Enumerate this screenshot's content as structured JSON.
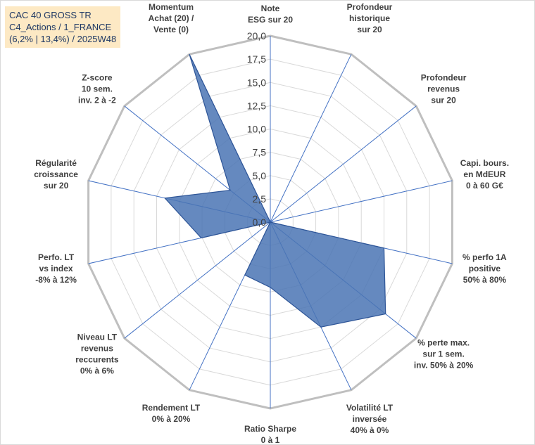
{
  "title_box": {
    "line1": "CAC 40 GROSS TR",
    "line2": "C4_Actions / 1_FRANCE",
    "line3": "(6,2% | 13,4%) / 2025W48"
  },
  "colors": {
    "fill": "#4a74b4",
    "stroke": "#2e5597",
    "grid": "#d9d9d9",
    "outer": "#bfbfbf",
    "spoke": "#4472c4",
    "title_bg": "#fde9c4"
  },
  "chart_data": {
    "type": "radar",
    "ylim": [
      0,
      20
    ],
    "tick_labels": [
      "0,0",
      "2,5",
      "5,0",
      "7,5",
      "10,0",
      "12,5",
      "15,0",
      "17,5",
      "20,0"
    ],
    "categories": [
      [
        "Note",
        "ESG sur 20"
      ],
      [
        "Profondeur",
        "historique",
        "sur 20"
      ],
      [
        "Profondeur",
        "revenus",
        "sur 20"
      ],
      [
        "Capi. bours.",
        "en MdEUR",
        "0 à 60 G€"
      ],
      [
        "% perfo 1A",
        "positive",
        "50% à 80%"
      ],
      [
        "% perte max.",
        "sur 1 sem.",
        "inv. 50% à 20%"
      ],
      [
        "Volatilité LT",
        "inversée",
        "40% à 0%"
      ],
      [
        "Ratio Sharpe",
        "0 à 1"
      ],
      [
        "Rendement LT",
        "0% à 20%"
      ],
      [
        "Niveau LT",
        "revenus",
        "reccurents",
        "0% à 6%"
      ],
      [
        "Perfo. LT",
        "vs index",
        "-8% à 12%"
      ],
      [
        "Régularité",
        "croissance",
        "sur 20"
      ],
      [
        "Z-score",
        "10 sem.",
        "inv. 2 à -2"
      ],
      [
        "Momentum",
        "Achat (20) /",
        "Vente (0)"
      ]
    ],
    "series": [
      {
        "name": "CAC 40 GROSS TR",
        "values": [
          0,
          0,
          0,
          0,
          12.5,
          15.8,
          12.5,
          7.0,
          6.3,
          0,
          7.6,
          11.6,
          5.5,
          20
        ]
      }
    ]
  }
}
